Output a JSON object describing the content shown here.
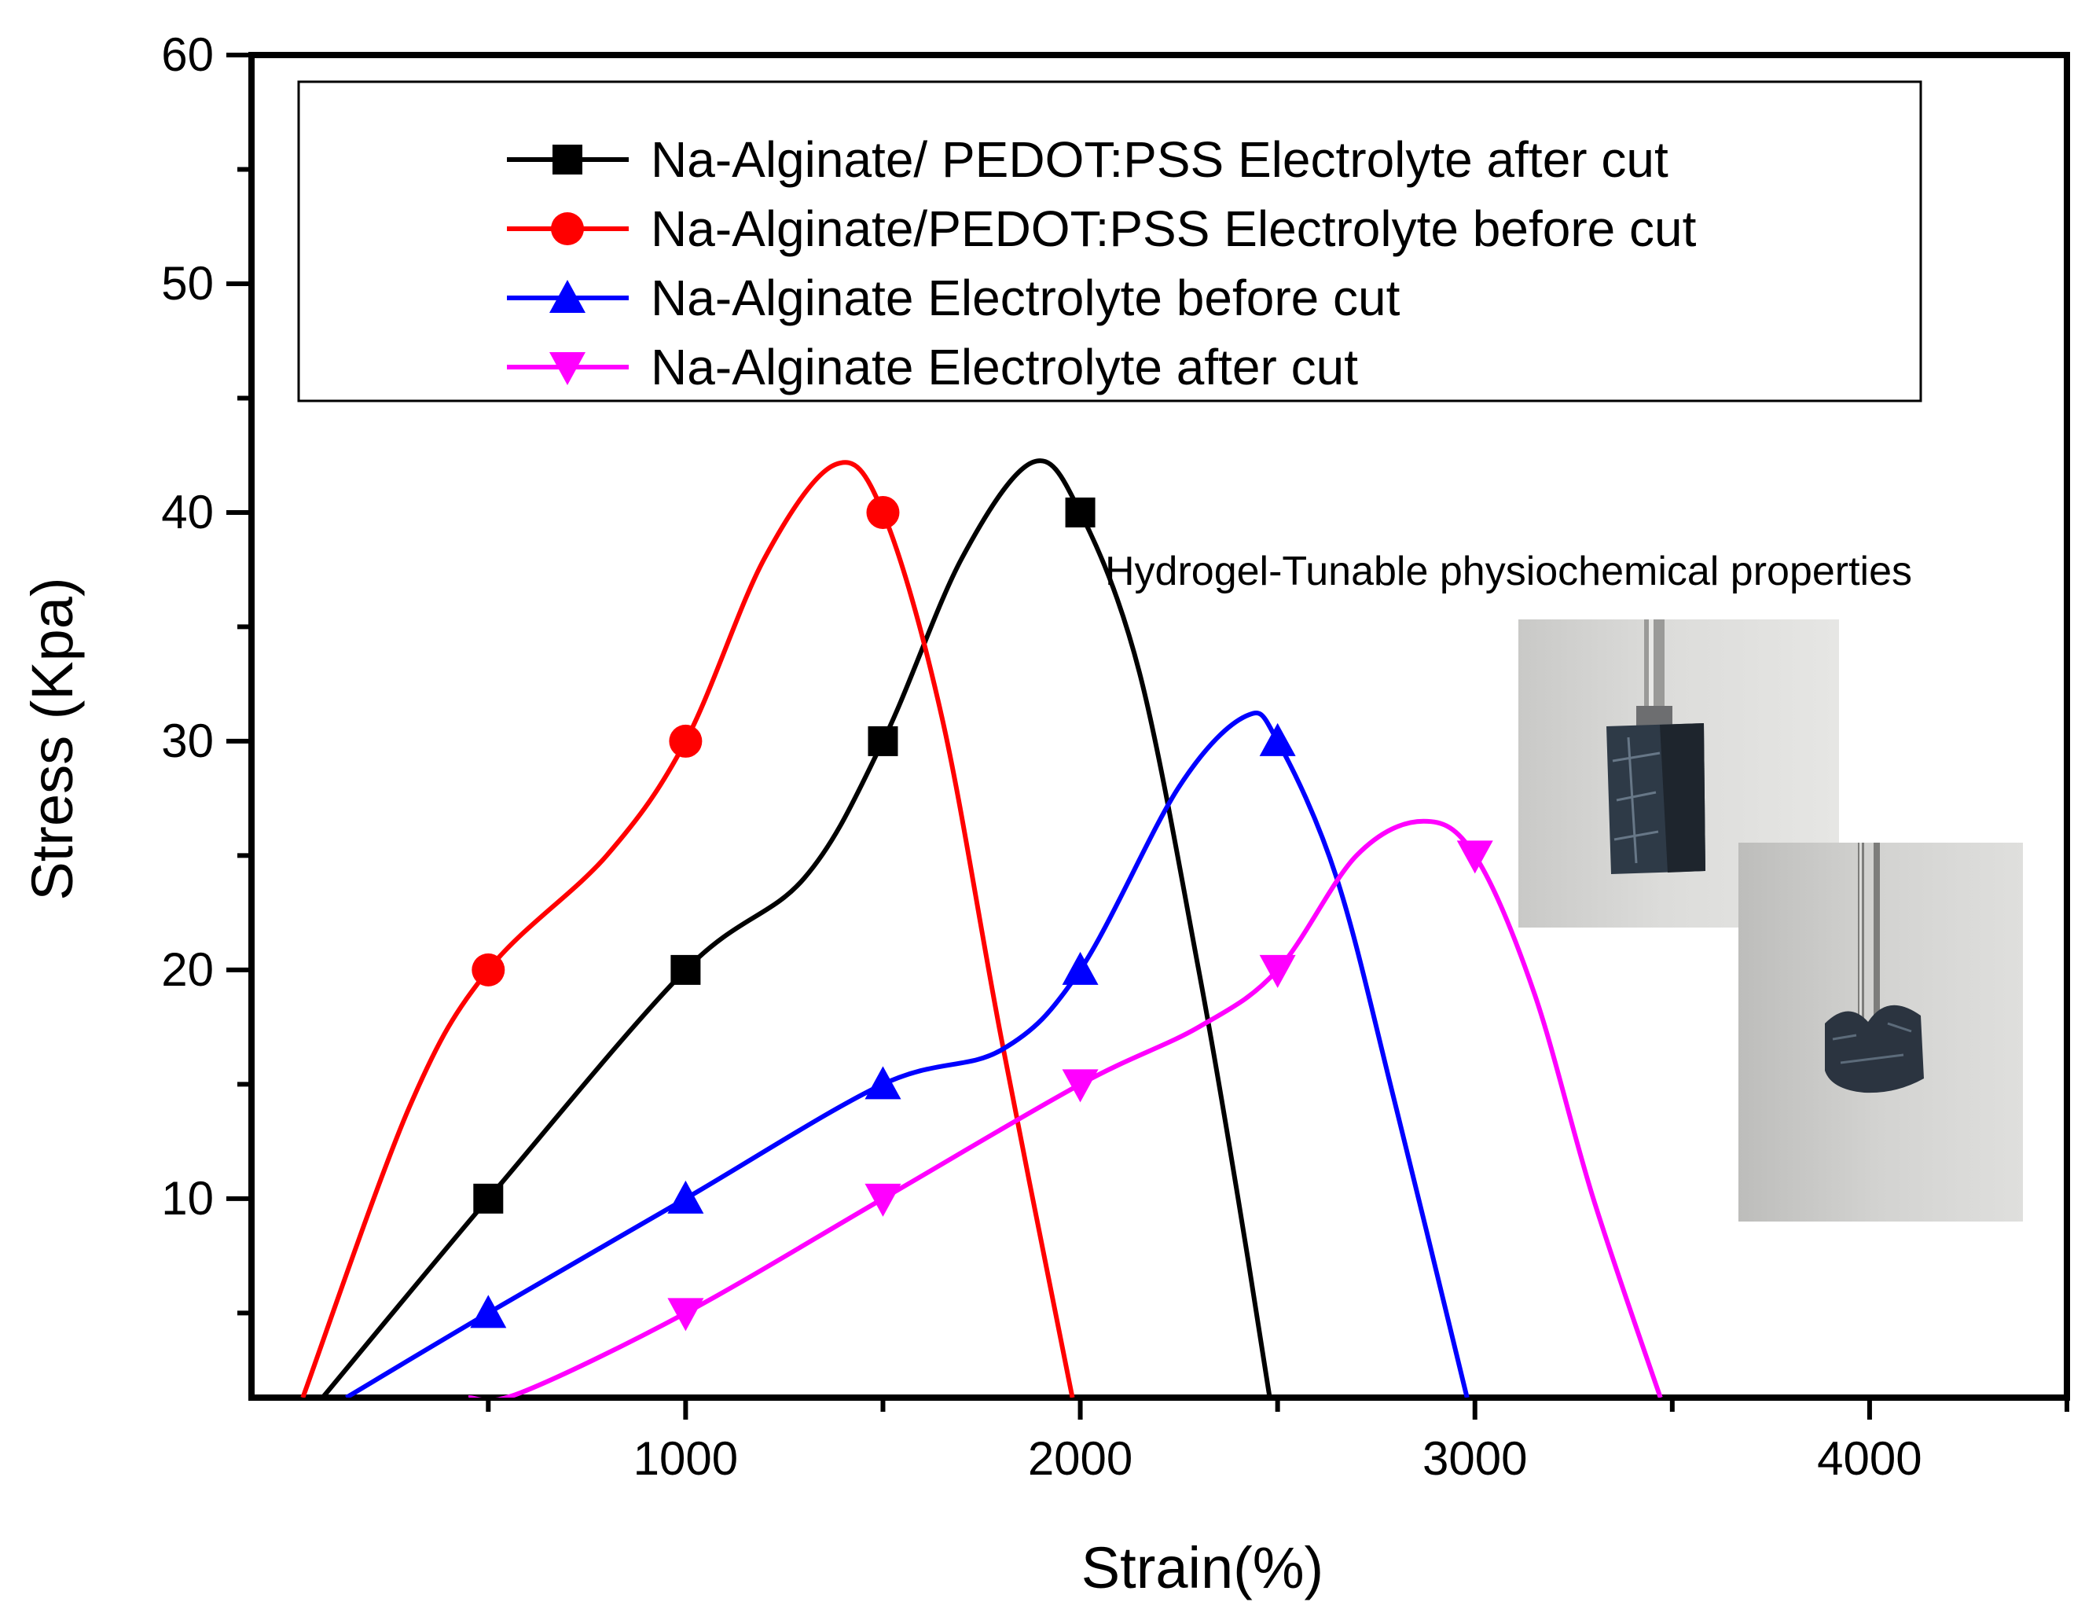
{
  "chart_data": {
    "type": "line",
    "title": "",
    "xlabel": "Strain(%)",
    "ylabel": "Stress (Kpa)",
    "xlim": [
      -100,
      4500
    ],
    "ylim": [
      1.3,
      60
    ],
    "xticks": [
      1000,
      2000,
      3000,
      4000
    ],
    "yticks": [
      10,
      20,
      30,
      40,
      50,
      60
    ],
    "grid": false,
    "legend_position": "top",
    "series": [
      {
        "name": "Na-Alginate/ PEDOT:PSS Electrolyte after cut",
        "color": "#000000",
        "marker": "square",
        "x": [
          500,
          1000,
          1500,
          2000
        ],
        "y": [
          10,
          20,
          30,
          40
        ],
        "curve": [
          [
            80,
            1.3
          ],
          [
            500,
            10
          ],
          [
            1000,
            20
          ],
          [
            1300,
            24
          ],
          [
            1500,
            30
          ],
          [
            1700,
            38
          ],
          [
            1880,
            42.2
          ],
          [
            2000,
            40
          ],
          [
            2150,
            33
          ],
          [
            2300,
            20
          ],
          [
            2400,
            10
          ],
          [
            2480,
            1.3
          ]
        ]
      },
      {
        "name": "Na-Alginate/PEDOT:PSS Electrolyte before cut",
        "color": "#ff0000",
        "marker": "circle",
        "x": [
          500,
          1000,
          1500
        ],
        "y": [
          20,
          30,
          40
        ],
        "curve": [
          [
            30,
            1.3
          ],
          [
            300,
            14
          ],
          [
            500,
            20
          ],
          [
            800,
            25
          ],
          [
            1000,
            30
          ],
          [
            1200,
            38
          ],
          [
            1380,
            42.1
          ],
          [
            1500,
            40
          ],
          [
            1650,
            31
          ],
          [
            1800,
            17
          ],
          [
            1980,
            1.3
          ]
        ]
      },
      {
        "name": "Na-Alginate Electrolyte before cut",
        "color": "#0000ff",
        "marker": "triangle-up",
        "x": [
          500,
          1000,
          1500,
          2000,
          2500
        ],
        "y": [
          5,
          10,
          15,
          20,
          30
        ],
        "curve": [
          [
            140,
            1.3
          ],
          [
            500,
            5
          ],
          [
            1000,
            10
          ],
          [
            1500,
            15
          ],
          [
            1800,
            16.5
          ],
          [
            2000,
            20
          ],
          [
            2250,
            28
          ],
          [
            2420,
            31.1
          ],
          [
            2500,
            30
          ],
          [
            2650,
            24
          ],
          [
            2800,
            14
          ],
          [
            2980,
            1.3
          ]
        ]
      },
      {
        "name": "Na-Alginate Electrolyte after cut",
        "color": "#ff00ff",
        "marker": "triangle-down",
        "x": [
          1000,
          1500,
          2000,
          2500,
          3000
        ],
        "y": [
          5,
          10,
          15,
          20,
          25
        ],
        "curve": [
          [
            450,
            1.3
          ],
          [
            580,
            1.5
          ],
          [
            1000,
            5
          ],
          [
            1500,
            10
          ],
          [
            2000,
            15
          ],
          [
            2300,
            17.5
          ],
          [
            2500,
            20
          ],
          [
            2700,
            25
          ],
          [
            2870,
            26.5
          ],
          [
            3000,
            25
          ],
          [
            3150,
            19
          ],
          [
            3300,
            10
          ],
          [
            3470,
            1.3
          ]
        ]
      }
    ],
    "annotations": [
      "Hydrogel-Tunable physiochemical properties"
    ]
  },
  "colors": {
    "axis": "#000000",
    "background": "#ffffff"
  }
}
